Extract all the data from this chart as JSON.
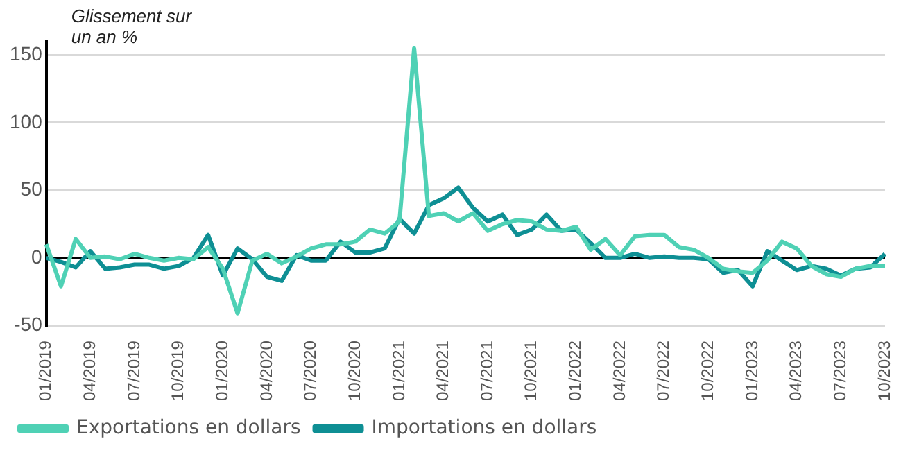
{
  "chart_data": {
    "type": "line",
    "ylabel": "Glissement sur un an %",
    "categories": [
      "01/2019",
      null,
      null,
      "04/2019",
      null,
      null,
      "07/2019",
      null,
      null,
      "10/2019",
      null,
      null,
      "01/2020",
      null,
      null,
      "04/2020",
      null,
      null,
      "07/2020",
      null,
      null,
      "10/2020",
      null,
      null,
      "01/2021",
      null,
      null,
      "04/2021",
      null,
      null,
      "07/2021",
      null,
      null,
      "10/2021",
      null,
      null,
      "01/2022",
      null,
      null,
      "04/2022",
      null,
      null,
      "07/2022",
      null,
      null,
      "10/2022",
      null,
      null,
      "01/2023",
      null,
      null,
      "04/2023",
      null,
      null,
      "07/2023",
      null,
      null,
      "10/2023"
    ],
    "series": [
      {
        "name": "Exportations en dollars",
        "color": "#4fd1b5",
        "values": [
          10,
          -21,
          14,
          0,
          1,
          -1,
          3,
          0,
          -2,
          0,
          -1,
          8,
          -8,
          -41,
          -2,
          3,
          -4,
          1,
          7,
          10,
          10,
          12,
          21,
          18,
          27,
          155,
          31,
          33,
          27,
          33,
          20,
          25,
          28,
          27,
          21,
          20,
          23,
          6,
          14,
          2,
          16,
          17,
          17,
          8,
          6,
          0,
          -8,
          -10,
          -11,
          -2,
          12,
          7,
          -6,
          -12,
          -14,
          -8,
          -6,
          -6
        ]
      },
      {
        "name": "Importations en dollars",
        "color": "#0e8f94",
        "values": [
          0,
          -3,
          -7,
          5,
          -8,
          -7,
          -5,
          -5,
          -8,
          -6,
          0,
          17,
          -13,
          7,
          -1,
          -14,
          -17,
          2,
          -2,
          -2,
          12,
          4,
          4,
          7,
          29,
          18,
          39,
          44,
          52,
          37,
          27,
          32,
          17,
          21,
          32,
          20,
          21,
          11,
          0,
          0,
          3,
          0,
          1,
          0,
          0,
          -1,
          -11,
          -9,
          -21,
          5,
          -2,
          -9,
          -6,
          -8,
          -13,
          -8,
          -7,
          3
        ]
      }
    ],
    "ylim": [
      -50,
      160
    ],
    "yticks": [
      -50,
      0,
      50,
      100,
      150
    ],
    "grid": "y",
    "legend": "bottom left",
    "marker": "none",
    "line_style": "solid"
  }
}
